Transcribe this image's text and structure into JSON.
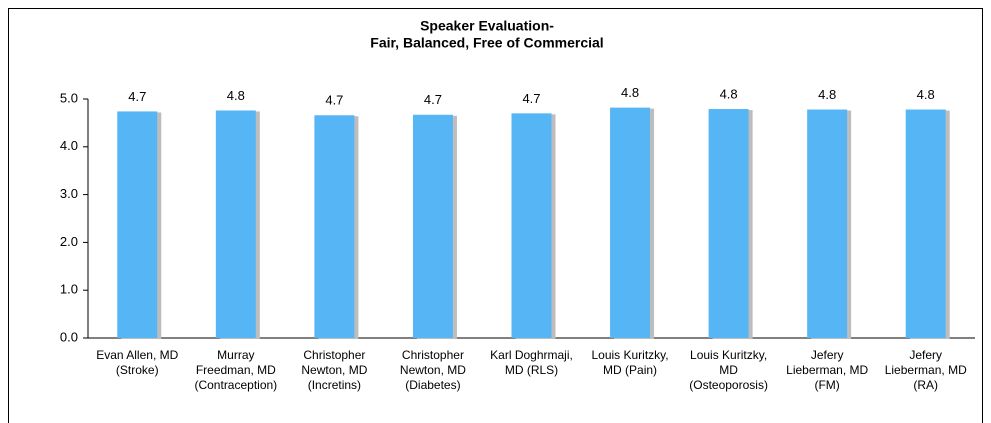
{
  "chart_data": {
    "type": "bar",
    "title": [
      "Speaker Evaluation-",
      "Fair, Balanced, Free of Commercial"
    ],
    "categories": [
      "Evan Allen, MD (Stroke)",
      "Murray Freedman, MD (Contraception)",
      "Christopher Newton, MD (Incretins)",
      "Christopher Newton, MD (Diabetes)",
      "Karl Doghrmaji, MD (RLS)",
      "Louis Kuritzky, MD (Pain)",
      "Louis Kuritzky, MD (Osteoporosis)",
      "Jefery Lieberman, MD (FM)",
      "Jefery Lieberman, MD (RA)"
    ],
    "values": [
      4.74,
      4.76,
      4.66,
      4.67,
      4.7,
      4.82,
      4.79,
      4.78,
      4.78
    ],
    "value_labels": [
      "4.7",
      "4.8",
      "4.7",
      "4.7",
      "4.7",
      "4.8",
      "4.8",
      "4.8",
      "4.8"
    ],
    "color": "#56b6f5",
    "ylim": [
      0,
      5
    ],
    "yticks": [
      {
        "value": 0,
        "label": "0.0"
      },
      {
        "value": 1,
        "label": "1.0"
      },
      {
        "value": 2,
        "label": "2.0"
      },
      {
        "value": 3,
        "label": "3.0"
      },
      {
        "value": 4,
        "label": "4.0"
      },
      {
        "value": 5,
        "label": "5.0"
      }
    ],
    "grid": false
  }
}
